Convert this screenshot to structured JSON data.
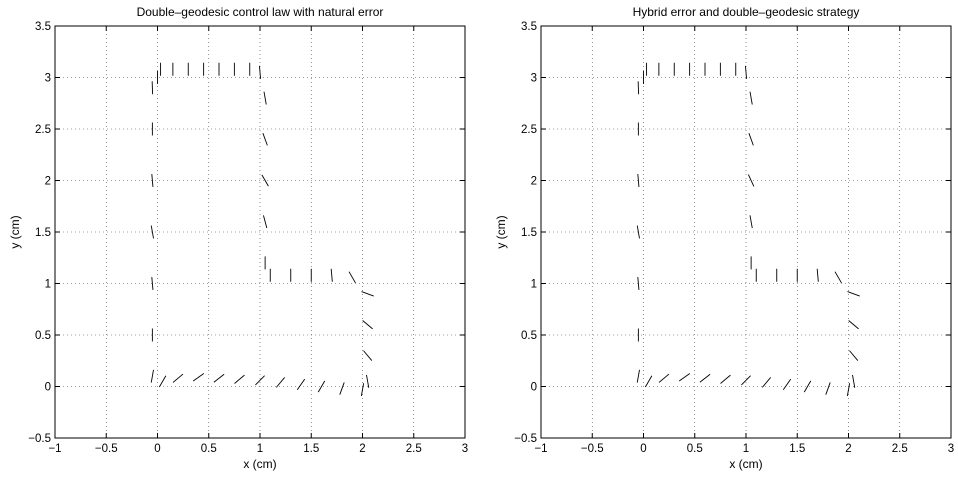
{
  "chart_data": [
    {
      "type": "line",
      "title": "Double–geodesic control law with natural error",
      "xlabel": "x (cm)",
      "ylabel": "y (cm)",
      "xlim": [
        -1,
        3
      ],
      "ylim": [
        -0.5,
        3.5
      ],
      "xticks": [
        "−1",
        "−0.5",
        "0",
        "0.5",
        "1",
        "1.5",
        "2",
        "2.5",
        "3"
      ],
      "yticks": [
        "−0.5",
        "0",
        "0.5",
        "1",
        "1.5",
        "2",
        "2.5",
        "3",
        "3.5"
      ],
      "grid": true,
      "series": [
        {
          "style": "oriented segments along L-shaped path",
          "x": [
            0.03,
            0.15,
            0.3,
            0.45,
            0.6,
            0.75,
            0.9,
            1.0,
            1.05,
            1.05,
            1.05,
            1.05,
            1.05,
            1.1,
            1.3,
            1.5,
            1.7,
            1.9,
            2.05,
            2.05,
            2.05,
            2.05,
            2.0,
            1.8,
            1.6,
            1.4,
            1.2,
            1.0,
            0.8,
            0.6,
            0.4,
            0.2,
            0.05,
            -0.05,
            -0.05,
            -0.05,
            -0.05,
            -0.05,
            -0.05,
            -0.05,
            0.0
          ],
          "y": [
            3.08,
            3.08,
            3.08,
            3.08,
            3.08,
            3.08,
            3.08,
            3.05,
            2.8,
            2.4,
            2.0,
            1.6,
            1.2,
            1.08,
            1.08,
            1.08,
            1.08,
            1.06,
            0.9,
            0.6,
            0.3,
            0.05,
            -0.03,
            -0.02,
            0.0,
            0.02,
            0.04,
            0.06,
            0.07,
            0.08,
            0.09,
            0.08,
            0.05,
            0.1,
            0.5,
            1.0,
            1.5,
            2.0,
            2.5,
            2.9,
            3.0
          ],
          "angle_deg": [
            90,
            90,
            90,
            90,
            90,
            90,
            90,
            95,
            100,
            110,
            120,
            105,
            90,
            90,
            90,
            90,
            95,
            120,
            160,
            140,
            130,
            100,
            80,
            70,
            60,
            55,
            50,
            45,
            40,
            38,
            35,
            40,
            60,
            80,
            90,
            95,
            100,
            95,
            90,
            92,
            90
          ]
        }
      ]
    },
    {
      "type": "line",
      "title": "Hybrid error and double–geodesic strategy",
      "xlabel": "x (cm)",
      "ylabel": "y (cm)",
      "xlim": [
        -1,
        3
      ],
      "ylim": [
        -0.5,
        3.5
      ],
      "xticks": [
        "−1",
        "−0.5",
        "0",
        "0.5",
        "1",
        "1.5",
        "2",
        "2.5",
        "3"
      ],
      "yticks": [
        "−0.5",
        "0",
        "0.5",
        "1",
        "1.5",
        "2",
        "2.5",
        "3",
        "3.5"
      ],
      "grid": true,
      "series": [
        {
          "style": "oriented segments along L-shaped path",
          "x": [
            0.03,
            0.15,
            0.3,
            0.45,
            0.6,
            0.75,
            0.9,
            1.0,
            1.05,
            1.05,
            1.05,
            1.05,
            1.05,
            1.1,
            1.3,
            1.5,
            1.7,
            1.9,
            2.05,
            2.05,
            2.05,
            2.05,
            2.0,
            1.8,
            1.6,
            1.4,
            1.2,
            1.0,
            0.8,
            0.6,
            0.4,
            0.2,
            0.05,
            -0.05,
            -0.05,
            -0.05,
            -0.05,
            -0.05,
            -0.05,
            -0.05,
            0.0
          ],
          "y": [
            3.08,
            3.08,
            3.08,
            3.08,
            3.08,
            3.08,
            3.08,
            3.05,
            2.8,
            2.4,
            2.0,
            1.6,
            1.2,
            1.08,
            1.08,
            1.08,
            1.08,
            1.06,
            0.9,
            0.6,
            0.3,
            0.05,
            -0.03,
            -0.02,
            0.0,
            0.02,
            0.04,
            0.06,
            0.07,
            0.08,
            0.09,
            0.08,
            0.05,
            0.1,
            0.5,
            1.0,
            1.5,
            2.0,
            2.5,
            2.9,
            3.0
          ],
          "angle_deg": [
            90,
            90,
            90,
            90,
            90,
            90,
            90,
            95,
            100,
            110,
            115,
            100,
            90,
            90,
            90,
            90,
            95,
            120,
            160,
            140,
            130,
            100,
            80,
            70,
            60,
            55,
            50,
            45,
            40,
            38,
            35,
            40,
            60,
            80,
            90,
            95,
            100,
            95,
            90,
            92,
            90
          ]
        }
      ]
    }
  ]
}
